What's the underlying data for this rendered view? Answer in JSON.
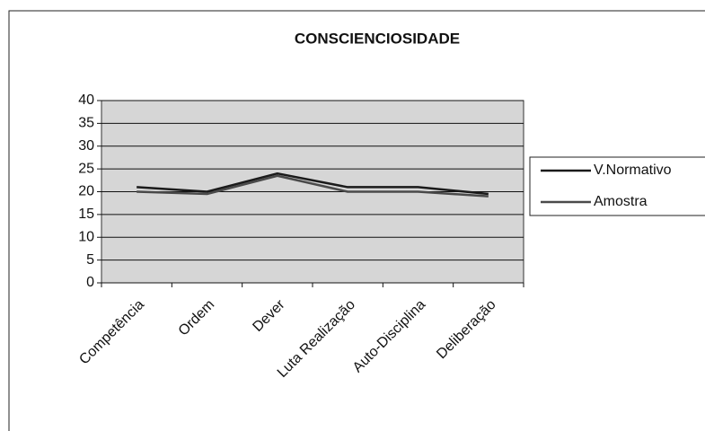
{
  "chart_data": {
    "type": "line",
    "title": "CONSCIENCIOSIDADE",
    "categories": [
      "Competência",
      "Ordem",
      "Dever",
      "Luta Realização",
      "Auto-Disciplina",
      "Deliberação"
    ],
    "series": [
      {
        "name": "V.Normativo",
        "color": "#1a1a1a",
        "values": [
          21,
          20,
          24,
          21,
          21,
          19.5
        ]
      },
      {
        "name": "Amostra",
        "color": "#4a4a4a",
        "values": [
          20,
          19.5,
          23.5,
          20,
          20,
          19
        ]
      }
    ],
    "ylim": [
      0,
      40
    ],
    "yticks": [
      0,
      5,
      10,
      15,
      20,
      25,
      30,
      35,
      40
    ],
    "grid": true,
    "legend": "right"
  }
}
